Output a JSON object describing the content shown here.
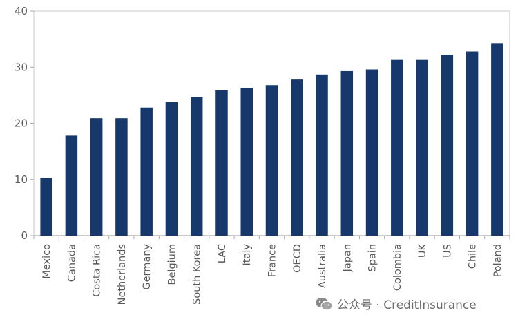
{
  "chart_data": {
    "type": "bar",
    "categories": [
      "Mexico",
      "Canada",
      "Costa Rica",
      "Netherlands",
      "Germany",
      "Belgium",
      "South Korea",
      "LAC",
      "Italy",
      "France",
      "OECD",
      "Australia",
      "Japan",
      "Spain",
      "Colombia",
      "UK",
      "US",
      "Chile",
      "Poland"
    ],
    "values": [
      10.3,
      17.8,
      20.9,
      20.9,
      22.8,
      23.8,
      24.7,
      25.9,
      26.3,
      26.8,
      27.8,
      28.7,
      29.3,
      29.6,
      31.3,
      31.3,
      32.2,
      32.8,
      34.3
    ],
    "yticks": [
      0,
      10,
      20,
      30,
      40
    ],
    "ylim": [
      0,
      40
    ],
    "bar_color": "#17386b",
    "grid": false
  },
  "watermark": {
    "text": "公众号 · CreditInsurance",
    "icon": "wechat-icon"
  }
}
